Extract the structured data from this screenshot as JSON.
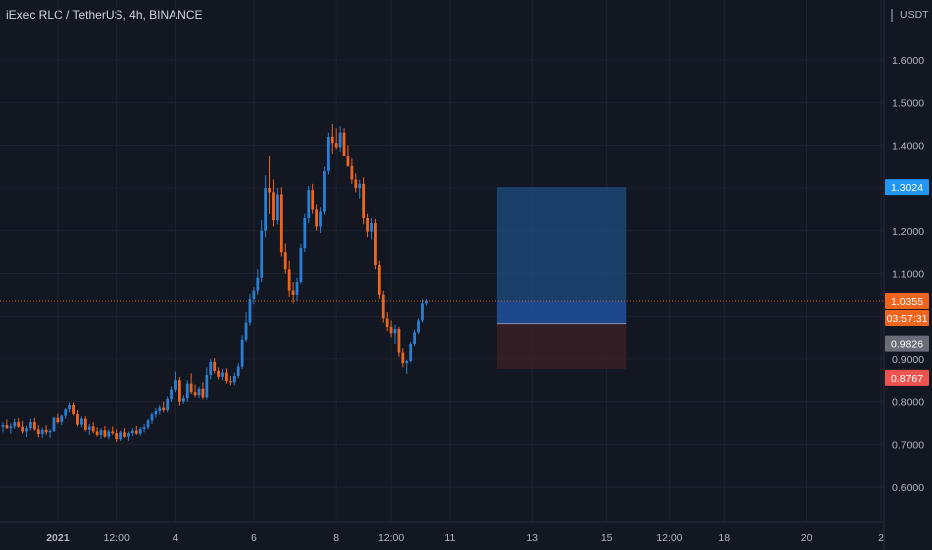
{
  "header": {
    "title": "iExec RLC / TetherUS, 4h, BINANCE"
  },
  "colors": {
    "background": "#131722",
    "bull": "#2a7fd4",
    "bear": "#f0651d",
    "grid": "#1f2330",
    "axis_text": "#b2b5be",
    "target_zone": "#1d4e80",
    "stop_zone": "#3b2026",
    "current_price_tag": "#f0651d",
    "target_tag": "#2196f3",
    "entry_tag": "#6a6d78",
    "stop_tag": "#ef5350"
  },
  "chart_data": {
    "type": "candlestick",
    "symbol": "iExec RLC / TetherUS",
    "interval": "4h",
    "exchange": "BINANCE",
    "currency": "USDT",
    "price_scale_label": "USDT",
    "y_ticks": [
      "1.6000",
      "1.5000",
      "1.4000",
      "1.3000",
      "1.2000",
      "1.1000",
      "1.0000",
      "0.9000",
      "0.8000",
      "0.7000",
      "0.6000"
    ],
    "y_tick_values": [
      1.6,
      1.5,
      1.4,
      1.3,
      1.2,
      1.1,
      1.0,
      0.9,
      0.8,
      0.7,
      0.6
    ],
    "ylim": [
      0.52,
      1.72
    ],
    "x_ticks": [
      {
        "label": "2021",
        "bar": 14,
        "bold": true
      },
      {
        "label": "12:00",
        "bar": 29
      },
      {
        "label": "4",
        "bar": 44
      },
      {
        "label": "6",
        "bar": 64
      },
      {
        "label": "8",
        "bar": 85
      },
      {
        "label": "12:00",
        "bar": 99
      },
      {
        "label": "11",
        "bar": 114
      },
      {
        "label": "13",
        "bar": 135
      },
      {
        "label": "15",
        "bar": 154
      },
      {
        "label": "12:00",
        "bar": 170
      },
      {
        "label": "18",
        "bar": 184
      },
      {
        "label": "20",
        "bar": 205
      },
      {
        "label": "2",
        "bar": 224
      }
    ],
    "price_tags": [
      {
        "label": "1.3024",
        "value": 1.3024,
        "kind": "target"
      },
      {
        "label": "1.0355",
        "value": 1.0355,
        "kind": "current"
      },
      {
        "label": "03:57:31",
        "value": 1.0355,
        "kind": "countdown"
      },
      {
        "label": "0.9826",
        "value": 0.9826,
        "kind": "entry"
      },
      {
        "label": "0.8767",
        "value": 0.8767,
        "kind": "stop"
      }
    ],
    "position": {
      "side": "long",
      "entry": 0.9826,
      "target": 1.3024,
      "stop": 0.8767,
      "start_bar": 126,
      "end_bar": 159
    },
    "current_price": 1.0355,
    "candles": [
      [
        0.741,
        0.752,
        0.728,
        0.745
      ],
      [
        0.745,
        0.758,
        0.735,
        0.738
      ],
      [
        0.738,
        0.749,
        0.725,
        0.742
      ],
      [
        0.742,
        0.76,
        0.736,
        0.752
      ],
      [
        0.752,
        0.762,
        0.738,
        0.741
      ],
      [
        0.741,
        0.755,
        0.725,
        0.73
      ],
      [
        0.73,
        0.744,
        0.717,
        0.738
      ],
      [
        0.738,
        0.76,
        0.732,
        0.752
      ],
      [
        0.752,
        0.762,
        0.732,
        0.735
      ],
      [
        0.735,
        0.745,
        0.716,
        0.724
      ],
      [
        0.724,
        0.739,
        0.715,
        0.734
      ],
      [
        0.734,
        0.745,
        0.722,
        0.728
      ],
      [
        0.728,
        0.736,
        0.715,
        0.731
      ],
      [
        0.731,
        0.765,
        0.729,
        0.762
      ],
      [
        0.762,
        0.772,
        0.748,
        0.752
      ],
      [
        0.752,
        0.77,
        0.745,
        0.767
      ],
      [
        0.767,
        0.785,
        0.76,
        0.782
      ],
      [
        0.782,
        0.798,
        0.775,
        0.792
      ],
      [
        0.792,
        0.798,
        0.768,
        0.771
      ],
      [
        0.771,
        0.78,
        0.742,
        0.746
      ],
      [
        0.746,
        0.765,
        0.74,
        0.76
      ],
      [
        0.76,
        0.766,
        0.73,
        0.734
      ],
      [
        0.734,
        0.748,
        0.722,
        0.742
      ],
      [
        0.742,
        0.752,
        0.726,
        0.73
      ],
      [
        0.73,
        0.74,
        0.718,
        0.722
      ],
      [
        0.722,
        0.738,
        0.712,
        0.733
      ],
      [
        0.733,
        0.743,
        0.715,
        0.718
      ],
      [
        0.718,
        0.735,
        0.712,
        0.73
      ],
      [
        0.73,
        0.742,
        0.722,
        0.726
      ],
      [
        0.726,
        0.735,
        0.706,
        0.712
      ],
      [
        0.712,
        0.732,
        0.708,
        0.728
      ],
      [
        0.728,
        0.738,
        0.715,
        0.718
      ],
      [
        0.718,
        0.73,
        0.708,
        0.726
      ],
      [
        0.726,
        0.738,
        0.72,
        0.732
      ],
      [
        0.732,
        0.743,
        0.722,
        0.725
      ],
      [
        0.725,
        0.74,
        0.72,
        0.736
      ],
      [
        0.736,
        0.748,
        0.728,
        0.74
      ],
      [
        0.74,
        0.76,
        0.735,
        0.756
      ],
      [
        0.756,
        0.775,
        0.748,
        0.77
      ],
      [
        0.77,
        0.785,
        0.762,
        0.778
      ],
      [
        0.778,
        0.792,
        0.77,
        0.786
      ],
      [
        0.786,
        0.8,
        0.775,
        0.78
      ],
      [
        0.78,
        0.812,
        0.775,
        0.806
      ],
      [
        0.806,
        0.835,
        0.8,
        0.828
      ],
      [
        0.828,
        0.87,
        0.822,
        0.85
      ],
      [
        0.85,
        0.858,
        0.79,
        0.8
      ],
      [
        0.8,
        0.815,
        0.795,
        0.808
      ],
      [
        0.808,
        0.85,
        0.8,
        0.842
      ],
      [
        0.842,
        0.866,
        0.818,
        0.822
      ],
      [
        0.822,
        0.84,
        0.81,
        0.815
      ],
      [
        0.815,
        0.835,
        0.808,
        0.83
      ],
      [
        0.83,
        0.845,
        0.805,
        0.81
      ],
      [
        0.81,
        0.88,
        0.805,
        0.862
      ],
      [
        0.862,
        0.9,
        0.852,
        0.893
      ],
      [
        0.893,
        0.902,
        0.866,
        0.872
      ],
      [
        0.872,
        0.88,
        0.852,
        0.858
      ],
      [
        0.858,
        0.876,
        0.85,
        0.868
      ],
      [
        0.868,
        0.878,
        0.842,
        0.848
      ],
      [
        0.848,
        0.86,
        0.838,
        0.845
      ],
      [
        0.845,
        0.868,
        0.838,
        0.86
      ],
      [
        0.86,
        0.89,
        0.855,
        0.882
      ],
      [
        0.882,
        0.955,
        0.876,
        0.945
      ],
      [
        0.945,
        1.01,
        0.94,
        0.985
      ],
      [
        0.985,
        1.052,
        0.978,
        1.04
      ],
      [
        1.04,
        1.068,
        1.028,
        1.06
      ],
      [
        1.06,
        1.11,
        1.05,
        1.09
      ],
      [
        1.09,
        1.225,
        1.08,
        1.2
      ],
      [
        1.2,
        1.33,
        1.185,
        1.3
      ],
      [
        1.3,
        1.375,
        1.24,
        1.29
      ],
      [
        1.29,
        1.32,
        1.21,
        1.225
      ],
      [
        1.225,
        1.3,
        1.215,
        1.285
      ],
      [
        1.285,
        1.302,
        1.14,
        1.15
      ],
      [
        1.15,
        1.17,
        1.1,
        1.11
      ],
      [
        1.11,
        1.13,
        1.045,
        1.06
      ],
      [
        1.06,
        1.08,
        1.03,
        1.05
      ],
      [
        1.05,
        1.09,
        1.035,
        1.08
      ],
      [
        1.08,
        1.17,
        1.075,
        1.16
      ],
      [
        1.16,
        1.24,
        1.15,
        1.23
      ],
      [
        1.23,
        1.305,
        1.218,
        1.295
      ],
      [
        1.295,
        1.31,
        1.24,
        1.25
      ],
      [
        1.25,
        1.262,
        1.2,
        1.21
      ],
      [
        1.21,
        1.255,
        1.195,
        1.245
      ],
      [
        1.245,
        1.35,
        1.238,
        1.34
      ],
      [
        1.34,
        1.43,
        1.332,
        1.42
      ],
      [
        1.42,
        1.45,
        1.38,
        1.405
      ],
      [
        1.405,
        1.44,
        1.39,
        1.395
      ],
      [
        1.395,
        1.445,
        1.385,
        1.43
      ],
      [
        1.43,
        1.44,
        1.38,
        1.375
      ],
      [
        1.375,
        1.4,
        1.35,
        1.352
      ],
      [
        1.352,
        1.37,
        1.31,
        1.32
      ],
      [
        1.32,
        1.335,
        1.29,
        1.3
      ],
      [
        1.3,
        1.32,
        1.275,
        1.31
      ],
      [
        1.31,
        1.325,
        1.215,
        1.23
      ],
      [
        1.23,
        1.24,
        1.185,
        1.198
      ],
      [
        1.198,
        1.23,
        1.18,
        1.218
      ],
      [
        1.218,
        1.228,
        1.11,
        1.12
      ],
      [
        1.12,
        1.13,
        1.04,
        1.05
      ],
      [
        1.05,
        1.06,
        0.985,
        0.995
      ],
      [
        0.995,
        1.01,
        0.965,
        0.975
      ],
      [
        0.975,
        0.99,
        0.95,
        0.96
      ],
      [
        0.96,
        0.98,
        0.935,
        0.97
      ],
      [
        0.97,
        0.975,
        0.905,
        0.915
      ],
      [
        0.915,
        0.925,
        0.88,
        0.89
      ],
      [
        0.89,
        0.898,
        0.865,
        0.895
      ],
      [
        0.895,
        0.94,
        0.892,
        0.935
      ],
      [
        0.935,
        0.968,
        0.93,
        0.962
      ],
      [
        0.962,
        0.995,
        0.958,
        0.99
      ],
      [
        0.99,
        1.04,
        0.985,
        1.03
      ],
      [
        1.03,
        1.04,
        1.025,
        1.036
      ]
    ]
  }
}
